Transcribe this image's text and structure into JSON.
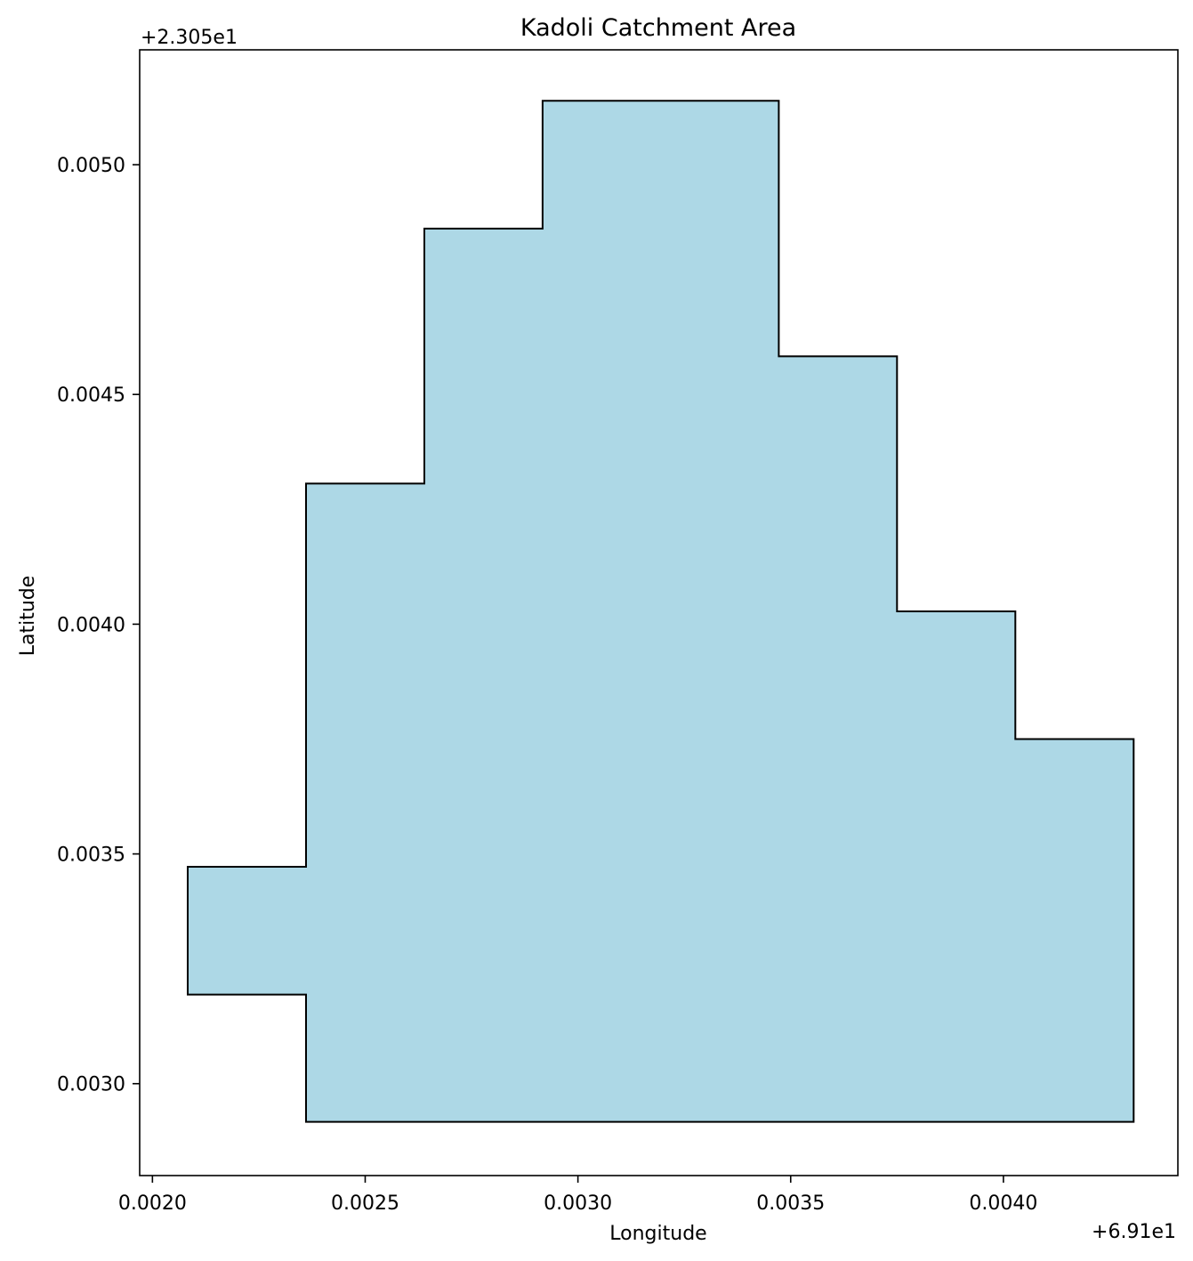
{
  "chart_data": {
    "type": "area",
    "title": "Kadoli Catchment Area",
    "xlabel": "Longitude",
    "ylabel": "Latitude",
    "x_offset_label": "+6.91e1",
    "y_offset_label": "+2.305e1",
    "xlim": [
      0.00197,
      0.00441
    ],
    "ylim": [
      0.0028,
      0.00525
    ],
    "x_ticks": [
      0.002,
      0.0025,
      0.003,
      0.0035,
      0.004
    ],
    "x_tick_labels": [
      "0.0020",
      "0.0025",
      "0.0030",
      "0.0035",
      "0.0040"
    ],
    "y_ticks": [
      0.003,
      0.0035,
      0.004,
      0.0045,
      0.005
    ],
    "y_tick_labels": [
      "0.0030",
      "0.0035",
      "0.0040",
      "0.0045",
      "0.0050"
    ],
    "grid": false,
    "fill_color": "#add8e6",
    "edge_color": "#000000",
    "polygon": [
      [
        0.002361,
        0.002917
      ],
      [
        0.004306,
        0.002917
      ],
      [
        0.004306,
        0.00375
      ],
      [
        0.004028,
        0.00375
      ],
      [
        0.004028,
        0.004028
      ],
      [
        0.00375,
        0.004028
      ],
      [
        0.00375,
        0.004583
      ],
      [
        0.003472,
        0.004583
      ],
      [
        0.003472,
        0.005139
      ],
      [
        0.002917,
        0.005139
      ],
      [
        0.002917,
        0.004861
      ],
      [
        0.002639,
        0.004861
      ],
      [
        0.002639,
        0.004306
      ],
      [
        0.002361,
        0.004306
      ],
      [
        0.002361,
        0.003472
      ],
      [
        0.002083,
        0.003472
      ],
      [
        0.002083,
        0.003194
      ],
      [
        0.002361,
        0.003194
      ]
    ]
  }
}
